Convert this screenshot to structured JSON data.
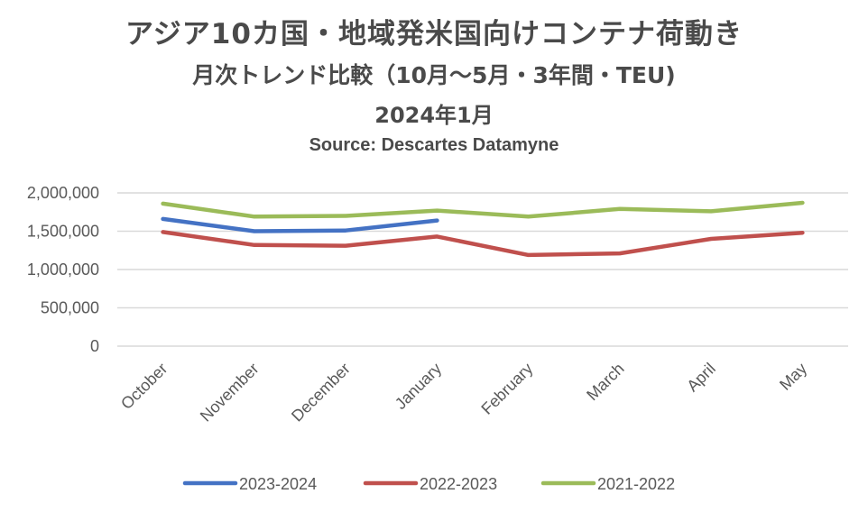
{
  "chart_data": {
    "type": "line",
    "title": "アジア10カ国・地域発米国向けコンテナ荷動き",
    "subtitle": "月次トレンド比較（10月～5月・3年間・TEU)",
    "date_label": "2024年1月",
    "source": "Source: Descartes Datamyne",
    "categories": [
      "October",
      "November",
      "December",
      "January",
      "February",
      "March",
      "April",
      "May"
    ],
    "ylim": [
      0,
      2000000
    ],
    "yticks": [
      0,
      500000,
      1000000,
      1500000,
      2000000
    ],
    "ytick_labels": [
      "0",
      "500,000",
      "1,000,000",
      "1,500,000",
      "2,000,000"
    ],
    "grid": true,
    "legend_position": "bottom",
    "series": [
      {
        "name": "2023-2024",
        "color": "#4472c4",
        "values": [
          1660000,
          1500000,
          1510000,
          1640000,
          null,
          null,
          null,
          null
        ]
      },
      {
        "name": "2022-2023",
        "color": "#c0504d",
        "values": [
          1490000,
          1320000,
          1310000,
          1430000,
          1190000,
          1210000,
          1400000,
          1480000
        ]
      },
      {
        "name": "2021-2022",
        "color": "#9bbb59",
        "values": [
          1860000,
          1690000,
          1700000,
          1770000,
          1690000,
          1790000,
          1760000,
          1870000
        ]
      }
    ]
  }
}
